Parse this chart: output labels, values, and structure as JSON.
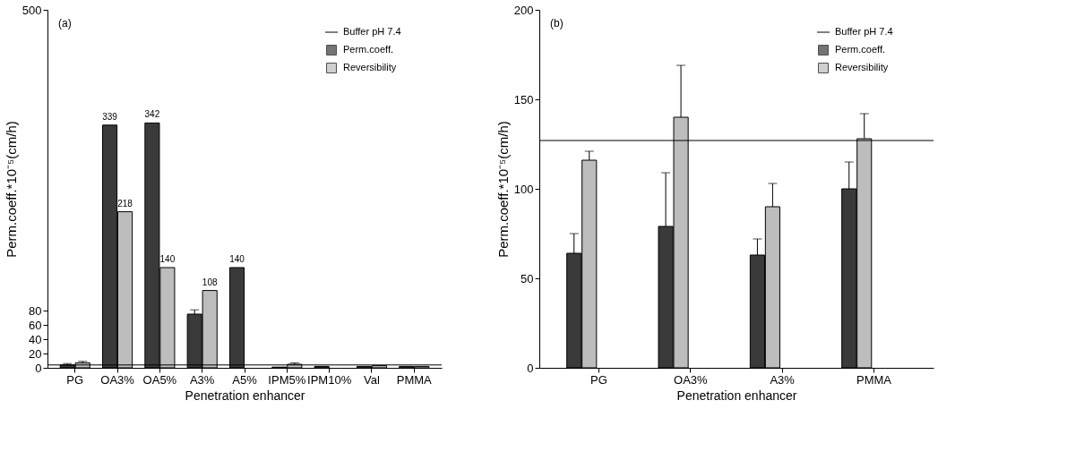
{
  "chart_data": [
    {
      "type": "bar",
      "title": "(a)",
      "xlabel": "Penetration enhancer",
      "ylabel": "Perm.coeff.*10⁻⁵(cm/h)",
      "categories": [
        "PG",
        "OA3%",
        "OA5%",
        "A3%",
        "A5%",
        "IPM5%",
        "IPM10%",
        "Val",
        "PMMA"
      ],
      "series": [
        {
          "name": "Perm.coeff.",
          "color": "#3a3a3a",
          "values": [
            4,
            339,
            342,
            75,
            140,
            1,
            2,
            2,
            2
          ],
          "errors": [
            [
              4,
              6
            ],
            null,
            null,
            [
              75,
              81
            ],
            null,
            null,
            null,
            null,
            null
          ],
          "value_labels": [
            null,
            "339",
            "342",
            null,
            "140",
            null,
            null,
            null,
            null
          ]
        },
        {
          "name": "Reversibility",
          "color": "#bdbdbd",
          "values": [
            7,
            218,
            140,
            108,
            null,
            5,
            null,
            3,
            2
          ],
          "errors": [
            [
              7,
              9
            ],
            null,
            null,
            null,
            null,
            [
              5,
              7
            ],
            null,
            null,
            null
          ],
          "value_labels": [
            null,
            "218",
            "140",
            "108",
            null,
            null,
            null,
            null,
            null
          ]
        }
      ],
      "ylim": [
        0,
        500
      ],
      "yticks": [
        0,
        20,
        40,
        60,
        80,
        500
      ],
      "grid": false,
      "legend": "top right",
      "ref_lines": [
        {
          "axis": "y",
          "value": 4,
          "label": "Buffer pH 7.4"
        }
      ]
    },
    {
      "type": "bar",
      "title": "(b)",
      "xlabel": "Penetration enhancer",
      "ylabel": "Perm.coeff.*10⁻⁵(cm/h)",
      "categories": [
        "PG",
        "OA3%",
        "A3%",
        "PMMA"
      ],
      "series": [
        {
          "name": "Perm.coeff.",
          "color": "#3a3a3a",
          "values": [
            64,
            79,
            63,
            100
          ],
          "errors": [
            [
              64,
              75
            ],
            [
              79,
              109
            ],
            [
              63,
              72
            ],
            [
              100,
              115
            ]
          ]
        },
        {
          "name": "Reversibility",
          "color": "#bdbdbd",
          "values": [
            116,
            140,
            90,
            128
          ],
          "errors": [
            [
              116,
              121
            ],
            [
              140,
              169
            ],
            [
              90,
              103
            ],
            [
              128,
              142
            ]
          ]
        }
      ],
      "ylim": [
        0,
        200
      ],
      "yticks": [
        0,
        50,
        100,
        150,
        200
      ],
      "grid": false,
      "legend": "top right",
      "ref_lines": [
        {
          "axis": "y",
          "value": 127,
          "label": "Buffer pH 7.4"
        }
      ]
    }
  ]
}
